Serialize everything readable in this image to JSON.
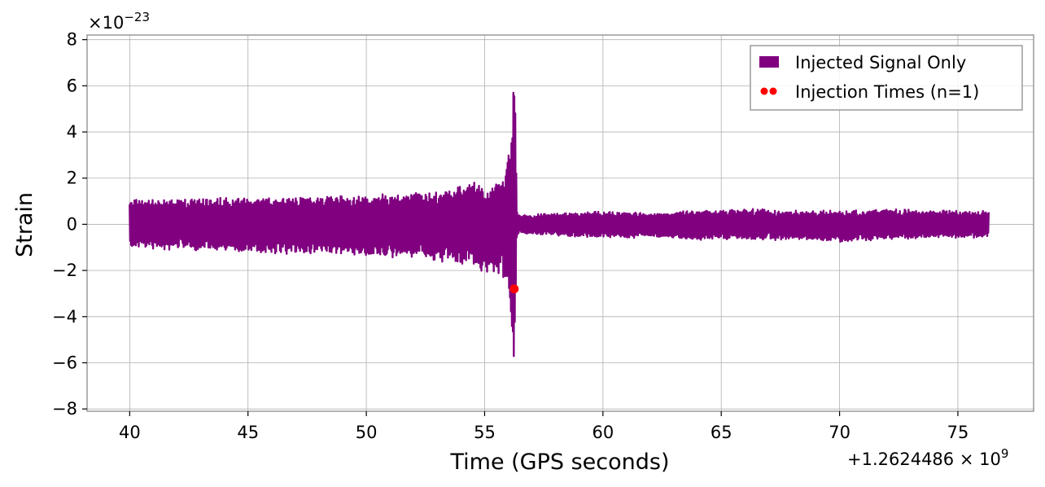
{
  "chart_data": {
    "type": "line",
    "title": "",
    "xlabel": "Time (GPS seconds)",
    "ylabel": "Strain",
    "x_offset_label": "+1.2624486 × 10",
    "x_offset_exponent": "9",
    "y_multiplier_label": "×10",
    "y_multiplier_exponent": "−23",
    "xlim": [
      38.2,
      78.2
    ],
    "ylim": [
      -8.1,
      8.2
    ],
    "x_ticks": [
      40,
      45,
      50,
      55,
      60,
      65,
      70,
      75
    ],
    "x_tick_labels": [
      "40",
      "45",
      "50",
      "55",
      "60",
      "65",
      "70",
      "75"
    ],
    "y_ticks": [
      -8,
      -6,
      -4,
      -2,
      0,
      2,
      4,
      6,
      8
    ],
    "y_tick_labels": [
      "−8",
      "−6",
      "−4",
      "−2",
      "0",
      "2",
      "4",
      "6",
      "8"
    ],
    "grid": true,
    "legend_position": "top-right",
    "series": [
      {
        "name": "Injected Signal Only",
        "color": "#800080",
        "kind": "line",
        "envelope": {
          "x": [
            40.0,
            42.0,
            44.0,
            46.0,
            48.0,
            50.0,
            52.0,
            53.0,
            54.0,
            54.5,
            55.0,
            55.5,
            55.8,
            56.0,
            56.1,
            56.2,
            56.25,
            56.3,
            56.35,
            56.4,
            56.5,
            58.0,
            60.0,
            62.0,
            64.0,
            66.0,
            68.0,
            70.0,
            72.0,
            74.0,
            76.3
          ],
          "y_max": [
            1.1,
            1.1,
            1.2,
            1.2,
            1.3,
            1.3,
            1.4,
            1.5,
            1.7,
            2.1,
            1.6,
            1.8,
            2.2,
            3.2,
            4.3,
            6.0,
            7.5,
            6.0,
            1.0,
            0.4,
            0.4,
            0.5,
            0.6,
            0.5,
            0.6,
            0.7,
            0.6,
            0.6,
            0.7,
            0.6,
            0.6
          ],
          "y_min": [
            -1.1,
            -1.1,
            -1.2,
            -1.3,
            -1.3,
            -1.4,
            -1.5,
            -1.6,
            -1.7,
            -1.9,
            -2.1,
            -2.2,
            -2.5,
            -3.0,
            -3.8,
            -5.5,
            -7.3,
            -5.0,
            -0.8,
            -0.5,
            -0.4,
            -0.5,
            -0.6,
            -0.6,
            -0.7,
            -0.7,
            -0.7,
            -0.8,
            -0.7,
            -0.6,
            -0.6
          ]
        }
      },
      {
        "name": "Injection Times (n=1)",
        "color": "#ff0000",
        "kind": "scatter",
        "x": [
          56.25
        ],
        "y": [
          -2.8
        ]
      }
    ]
  }
}
